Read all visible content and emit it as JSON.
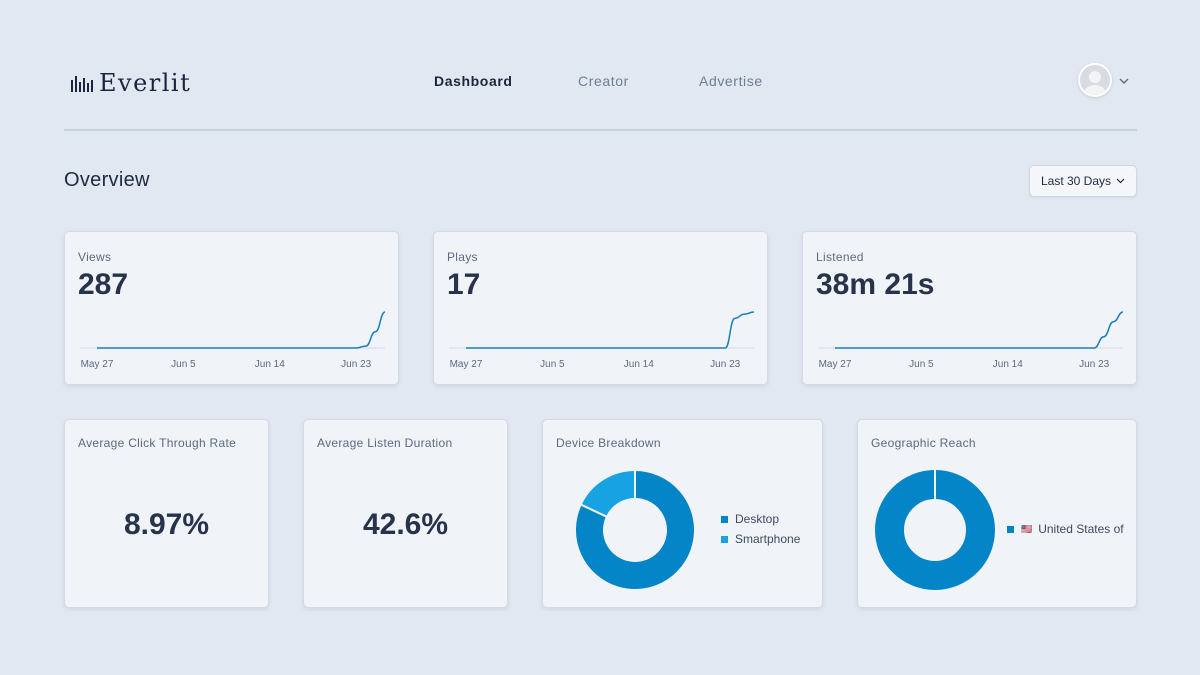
{
  "brand": {
    "name": "Everlit"
  },
  "nav": {
    "items": [
      {
        "label": "Dashboard",
        "active": true
      },
      {
        "label": "Creator",
        "active": false
      },
      {
        "label": "Advertise",
        "active": false
      }
    ]
  },
  "page": {
    "title": "Overview"
  },
  "date_range": {
    "label": "Last 30 Days"
  },
  "colors": {
    "accent": "#0485c7",
    "accent_light": "#17a3e3",
    "line": "#1b80b8"
  },
  "stats": [
    {
      "label": "Views",
      "value": "287"
    },
    {
      "label": "Plays",
      "value": "17"
    },
    {
      "label": "Listened",
      "value": "38m 21s"
    }
  ],
  "chart_data": [
    {
      "type": "line",
      "title": "Views",
      "x_tick_labels": [
        "May 27",
        "Jun 5",
        "Jun 14",
        "Jun 23"
      ],
      "x": [
        "May 27",
        "Jun 23",
        "Jun 24",
        "Jun 25",
        "Jun 26"
      ],
      "y": [
        0,
        0,
        15,
        130,
        287
      ],
      "ylim": [
        0,
        287
      ],
      "grid": false
    },
    {
      "type": "line",
      "title": "Plays",
      "x_tick_labels": [
        "May 27",
        "Jun 5",
        "Jun 14",
        "Jun 23"
      ],
      "x": [
        "May 27",
        "Jun 23",
        "Jun 24",
        "Jun 25",
        "Jun 26"
      ],
      "y": [
        0,
        0,
        14,
        16,
        17
      ],
      "ylim": [
        0,
        17
      ],
      "grid": false
    },
    {
      "type": "line",
      "title": "Listened",
      "x_tick_labels": [
        "May 27",
        "Jun 5",
        "Jun 14",
        "Jun 23"
      ],
      "x": [
        "May 27",
        "Jun 23",
        "Jun 24",
        "Jun 25",
        "Jun 26"
      ],
      "y": [
        0,
        0,
        12,
        28,
        38.35
      ],
      "ylim": [
        0,
        38.35
      ],
      "grid": false
    },
    {
      "type": "pie",
      "title": "Device Breakdown",
      "categories": [
        "Desktop",
        "Smartphone"
      ],
      "values": [
        82,
        18
      ],
      "colors": [
        "#0485c7",
        "#17a3e3"
      ]
    },
    {
      "type": "pie",
      "title": "Geographic Reach",
      "categories": [
        "United States of"
      ],
      "flags": [
        "🇺🇸"
      ],
      "values": [
        100
      ],
      "colors": [
        "#0485c7"
      ]
    }
  ],
  "kpis": [
    {
      "label": "Average Click Through Rate",
      "value": "8.97%"
    },
    {
      "label": "Average Listen Duration",
      "value": "42.6%"
    }
  ]
}
